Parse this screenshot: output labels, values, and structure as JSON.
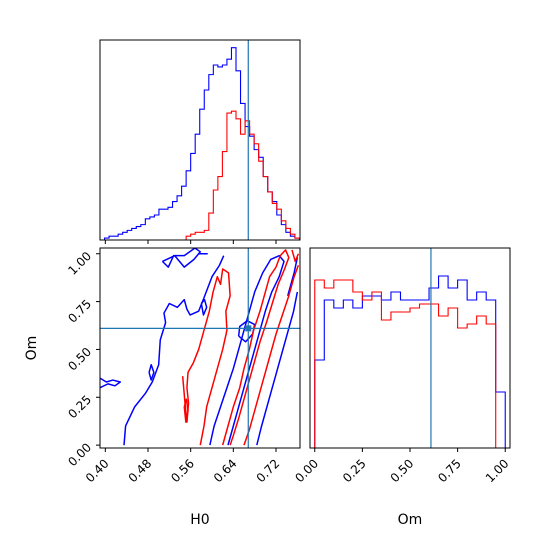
{
  "chart_data": {
    "type": "corner",
    "parameters": [
      "H0",
      "Om"
    ],
    "truth": {
      "H0": 0.668,
      "Om": 0.61
    },
    "series_colors": [
      "#0000ff",
      "#ff0000"
    ],
    "truth_color": "#1f77b4",
    "panels": [
      {
        "id": "hist-H0",
        "type": "histogram",
        "x_range": [
          0.39,
          0.765
        ],
        "y_range": [
          0,
          1.04
        ],
        "xticks": [
          0.4,
          0.48,
          0.56,
          0.64,
          0.72
        ],
        "show_tick_labels": false,
        "bin_edges": [
          0.39,
          0.3985,
          0.407,
          0.4155,
          0.424,
          0.4325,
          0.441,
          0.4495,
          0.458,
          0.4665,
          0.475,
          0.4835,
          0.492,
          0.5005,
          0.509,
          0.5175,
          0.526,
          0.5345,
          0.543,
          0.5515,
          0.56,
          0.5685,
          0.577,
          0.5855,
          0.594,
          0.6025,
          0.611,
          0.6195,
          0.628,
          0.6365,
          0.645,
          0.6535,
          0.662,
          0.6705,
          0.679,
          0.6875,
          0.696,
          0.7045,
          0.713,
          0.7215,
          0.73,
          0.7385,
          0.747,
          0.7555,
          0.764
        ],
        "series": [
          {
            "color": "#0000ff",
            "values": [
              0.0,
              0.01,
              0.02,
              0.02,
              0.03,
              0.04,
              0.05,
              0.06,
              0.07,
              0.08,
              0.11,
              0.12,
              0.13,
              0.16,
              0.16,
              0.17,
              0.2,
              0.23,
              0.28,
              0.36,
              0.45,
              0.55,
              0.68,
              0.78,
              0.86,
              0.91,
              0.9,
              0.91,
              0.94,
              1.0,
              0.88,
              0.71,
              0.59,
              0.54,
              0.47,
              0.43,
              0.33,
              0.25,
              0.2,
              0.13,
              0.08,
              0.04,
              0.02,
              0.01
            ]
          },
          {
            "color": "#ff0000",
            "values": [
              0.0,
              0.0,
              0.0,
              0.0,
              0.0,
              0.0,
              0.0,
              0.0,
              0.0,
              0.0,
              0.0,
              0.0,
              0.0,
              0.0,
              0.0,
              0.0,
              0.0,
              0.0,
              0.0,
              0.02,
              0.03,
              0.04,
              0.04,
              0.05,
              0.14,
              0.26,
              0.33,
              0.46,
              0.66,
              0.67,
              0.63,
              0.55,
              0.62,
              0.55,
              0.5,
              0.41,
              0.33,
              0.25,
              0.19,
              0.16,
              0.1,
              0.06,
              0.03,
              0.01
            ]
          }
        ]
      },
      {
        "id": "contour-H0-Om",
        "type": "contour",
        "x_range": [
          0.39,
          0.765
        ],
        "y_range": [
          -0.015,
          1.03
        ],
        "xticks": [
          0.4,
          0.48,
          0.56,
          0.64,
          0.72
        ],
        "xtick_labels": [
          "0.40",
          "0.48",
          "0.56",
          "0.64",
          "0.72"
        ],
        "yticks": [
          0.0,
          0.25,
          0.5,
          0.75,
          1.0
        ],
        "ytick_labels": [
          "0.00",
          "0.25",
          "0.50",
          "0.75",
          "1.00"
        ],
        "xlabel": "H0",
        "ylabel": "Om",
        "series": [
          {
            "color": "#0000ff",
            "contours": [
              [
                [
                  0.39,
                  0.35
                ],
                [
                  0.402,
                  0.33
                ],
                [
                  0.414,
                  0.34
                ],
                [
                  0.428,
                  0.33
                ],
                [
                  0.418,
                  0.31
                ],
                [
                  0.405,
                  0.32
                ],
                [
                  0.39,
                  0.3
                ]
              ],
              [
                [
                  0.435,
                  0.0
                ],
                [
                  0.438,
                  0.1
                ],
                [
                  0.455,
                  0.2
                ],
                [
                  0.475,
                  0.27
                ],
                [
                  0.488,
                  0.33
                ],
                [
                  0.5,
                  0.42
                ],
                [
                  0.503,
                  0.55
                ],
                [
                  0.513,
                  0.64
                ],
                [
                  0.51,
                  0.69
                ],
                [
                  0.52,
                  0.74
                ],
                [
                  0.535,
                  0.72
                ],
                [
                  0.548,
                  0.76
                ],
                [
                  0.553,
                  0.71
                ],
                [
                  0.559,
                  0.68
                ],
                [
                  0.575,
                  0.7
                ],
                [
                  0.585,
                  0.77
                ],
                [
                  0.6,
                  0.88
                ],
                [
                  0.614,
                  0.94
                ],
                [
                  0.622,
                  0.99
                ]
              ],
              [
                [
                  0.482,
                  0.38
                ],
                [
                  0.486,
                  0.34
                ],
                [
                  0.491,
                  0.38
                ],
                [
                  0.486,
                  0.42
                ],
                [
                  0.482,
                  0.38
                ]
              ],
              [
                [
                  0.507,
                  0.96
                ],
                [
                  0.53,
                  0.99
                ],
                [
                  0.548,
                  0.93
                ],
                [
                  0.566,
                  0.97
                ],
                [
                  0.578,
                  1.01
                ],
                [
                  0.568,
                  1.03
                ],
                [
                  0.548,
                  0.99
                ],
                [
                  0.528,
                  0.99
                ],
                [
                  0.518,
                  0.93
                ],
                [
                  0.507,
                  0.96
                ]
              ],
              [
                [
                  0.58,
                  0.74
                ],
                [
                  0.584,
                  0.68
                ],
                [
                  0.59,
                  0.72
                ],
                [
                  0.586,
                  0.76
                ],
                [
                  0.58,
                  0.74
                ]
              ],
              [
                [
                  0.596,
                  0.0
                ],
                [
                  0.604,
                  0.1
                ],
                [
                  0.616,
                  0.2
                ],
                [
                  0.628,
                  0.3
                ],
                [
                  0.64,
                  0.4
                ],
                [
                  0.65,
                  0.5
                ],
                [
                  0.66,
                  0.6
                ],
                [
                  0.67,
                  0.7
                ],
                [
                  0.68,
                  0.8
                ],
                [
                  0.695,
                  0.9
                ],
                [
                  0.71,
                  0.97
                ],
                [
                  0.726,
                  0.99
                ],
                [
                  0.735,
                  0.96
                ],
                [
                  0.726,
                  0.88
                ],
                [
                  0.712,
                  0.8
                ],
                [
                  0.7,
                  0.7
                ],
                [
                  0.69,
                  0.6
                ],
                [
                  0.68,
                  0.5
                ],
                [
                  0.67,
                  0.4
                ],
                [
                  0.66,
                  0.3
                ],
                [
                  0.65,
                  0.2
                ],
                [
                  0.64,
                  0.1
                ],
                [
                  0.63,
                  0.0
                ]
              ],
              [
                [
                  0.65,
                  0.57
                ],
                [
                  0.663,
                  0.54
                ],
                [
                  0.676,
                  0.58
                ],
                [
                  0.68,
                  0.63
                ],
                [
                  0.666,
                  0.65
                ],
                [
                  0.652,
                  0.62
                ],
                [
                  0.65,
                  0.57
                ]
              ],
              [
                [
                  0.684,
                  0.0
                ],
                [
                  0.693,
                  0.1
                ],
                [
                  0.703,
                  0.2
                ],
                [
                  0.713,
                  0.3
                ],
                [
                  0.723,
                  0.4
                ],
                [
                  0.733,
                  0.5
                ],
                [
                  0.743,
                  0.6
                ],
                [
                  0.753,
                  0.7
                ],
                [
                  0.76,
                  0.8
                ]
              ],
              [
                [
                  0.742,
                  0.78
                ],
                [
                  0.754,
                  0.9
                ],
                [
                  0.76,
                  0.98
                ]
              ],
              [
                [
                  0.574,
                  1.0
                ],
                [
                  0.592,
                  1.0
                ]
              ]
            ]
          },
          {
            "color": "#ff0000",
            "contours": [
              [
                [
                  0.545,
                  0.36
                ],
                [
                  0.55,
                  0.2
                ],
                [
                  0.553,
                  0.12
                ],
                [
                  0.556,
                  0.22
                ],
                [
                  0.553,
                  0.3
                ],
                [
                  0.555,
                  0.38
                ],
                [
                  0.565,
                  0.43
                ],
                [
                  0.575,
                  0.5
                ],
                [
                  0.585,
                  0.6
                ],
                [
                  0.595,
                  0.7
                ],
                [
                  0.602,
                  0.8
                ],
                [
                  0.61,
                  0.88
                ],
                [
                  0.616,
                  0.84
                ],
                [
                  0.62,
                  0.92
                ],
                [
                  0.631,
                  0.9
                ],
                [
                  0.634,
                  0.78
                ],
                [
                  0.626,
                  0.7
                ],
                [
                  0.628,
                  0.6
                ],
                [
                  0.62,
                  0.5
                ],
                [
                  0.61,
                  0.4
                ],
                [
                  0.6,
                  0.3
                ],
                [
                  0.59,
                  0.2
                ],
                [
                  0.585,
                  0.1
                ],
                [
                  0.578,
                  0.0
                ]
              ],
              [
                [
                  0.548,
                  0.2
                ],
                [
                  0.551,
                  0.12
                ],
                [
                  0.555,
                  0.18
                ],
                [
                  0.552,
                  0.24
                ],
                [
                  0.548,
                  0.2
                ]
              ],
              [
                [
                  0.62,
                  0.0
                ],
                [
                  0.63,
                  0.1
                ],
                [
                  0.64,
                  0.2
                ],
                [
                  0.652,
                  0.3
                ],
                [
                  0.66,
                  0.4
                ],
                [
                  0.67,
                  0.5
                ],
                [
                  0.678,
                  0.6
                ],
                [
                  0.69,
                  0.7
                ],
                [
                  0.7,
                  0.8
                ],
                [
                  0.708,
                  0.88
                ],
                [
                  0.72,
                  0.93
                ],
                [
                  0.728,
                  0.99
                ],
                [
                  0.738,
                  1.02
                ],
                [
                  0.744,
                  0.98
                ],
                [
                  0.736,
                  0.92
                ],
                [
                  0.724,
                  0.84
                ],
                [
                  0.713,
                  0.74
                ],
                [
                  0.702,
                  0.64
                ],
                [
                  0.69,
                  0.54
                ],
                [
                  0.68,
                  0.44
                ],
                [
                  0.67,
                  0.34
                ],
                [
                  0.66,
                  0.24
                ],
                [
                  0.65,
                  0.14
                ],
                [
                  0.64,
                  0.05
                ],
                [
                  0.634,
                  0.0
                ]
              ],
              [
                [
                  0.66,
                  0.0
                ],
                [
                  0.67,
                  0.08
                ],
                [
                  0.68,
                  0.18
                ],
                [
                  0.69,
                  0.28
                ],
                [
                  0.7,
                  0.38
                ],
                [
                  0.71,
                  0.48
                ],
                [
                  0.72,
                  0.58
                ],
                [
                  0.732,
                  0.68
                ],
                [
                  0.744,
                  0.78
                ],
                [
                  0.754,
                  0.88
                ],
                [
                  0.762,
                  0.94
                ]
              ],
              [
                [
                  0.75,
                  1.02
                ],
                [
                  0.756,
                  0.96
                ],
                [
                  0.762,
                  1.0
                ]
              ]
            ]
          }
        ]
      },
      {
        "id": "hist-Om",
        "type": "histogram",
        "x_range": [
          -0.025,
          1.025
        ],
        "y_range": [
          0,
          1.0
        ],
        "xticks": [
          0.0,
          0.25,
          0.5,
          0.75,
          1.0
        ],
        "xtick_labels": [
          "0.00",
          "0.25",
          "0.50",
          "0.75",
          "1.00"
        ],
        "xlabel": "Om",
        "show_y_ticks": false,
        "bin_edges": [
          0.0,
          0.05,
          0.1,
          0.15,
          0.2,
          0.25,
          0.3,
          0.35,
          0.4,
          0.45,
          0.5,
          0.55,
          0.6,
          0.65,
          0.7,
          0.75,
          0.8,
          0.85,
          0.9,
          0.95,
          1.0
        ],
        "series": [
          {
            "color": "#0000ff",
            "values": [
              0.44,
              0.74,
              0.7,
              0.74,
              0.7,
              0.76,
              0.76,
              0.74,
              0.78,
              0.74,
              0.74,
              0.74,
              0.8,
              0.86,
              0.8,
              0.84,
              0.74,
              0.78,
              0.74,
              0.28
            ]
          },
          {
            "color": "#ff0000",
            "values": [
              0.84,
              0.8,
              0.84,
              0.84,
              0.78,
              0.74,
              0.78,
              0.64,
              0.68,
              0.68,
              0.7,
              0.72,
              0.72,
              0.66,
              0.7,
              0.6,
              0.62,
              0.66,
              0.62,
              0.0
            ]
          }
        ]
      }
    ]
  }
}
